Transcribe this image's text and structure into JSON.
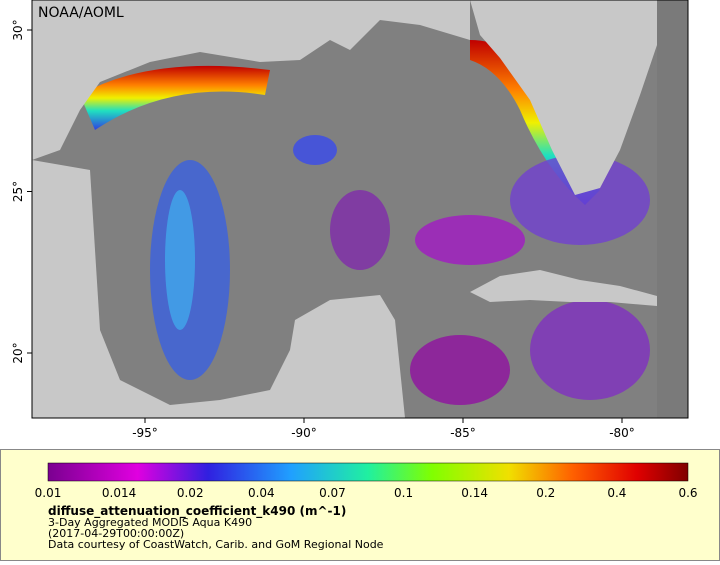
{
  "header": {
    "title": "NOAA/AOML"
  },
  "map": {
    "xticks": [
      "-95°",
      "-90°",
      "-85°",
      "-80°"
    ],
    "yticks": [
      "30°",
      "25°",
      "20°"
    ]
  },
  "legend": {
    "colorbar_ticks": [
      "0.01",
      "0.014",
      "0.02",
      "0.04",
      "0.07",
      "0.1",
      "0.14",
      "0.2",
      "0.4",
      "0.6"
    ],
    "variable": "diffuse_attenuation_coefficient_k490 (m^-1)",
    "lines": [
      "3-Day Aggregated MODIS Aqua K490",
      "(2017-04-29T00:00:00Z)",
      "Data courtesy of CoastWatch, Carib. and GoM Regional Node"
    ]
  }
}
